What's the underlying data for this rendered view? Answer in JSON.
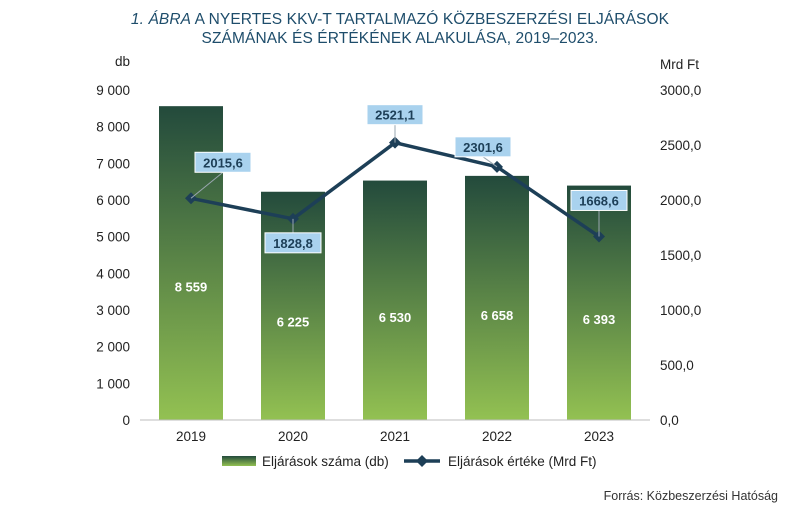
{
  "title": {
    "figure_label": "1. ÁBRA",
    "line1": " A NYERTES KKV-T TARTALMAZÓ KÖZBESZERZÉSI ELJÁRÁSOK",
    "line2": "SZÁMÁNAK ÉS ÉRTÉKÉNEK ALAKULÁSA, 2019–2023."
  },
  "source": "Forrás: Közbeszerzési Hatóság",
  "colors": {
    "bar_top": "#234a3c",
    "bar_bottom": "#93c152",
    "line": "#1d3f57",
    "label_bg": "#a9d2ee",
    "label_text": "#1d3f57",
    "title": "#1e4d6b"
  },
  "chart_data": {
    "type": "bar+line",
    "categories": [
      "2019",
      "2020",
      "2021",
      "2022",
      "2023"
    ],
    "series": [
      {
        "name": "Eljárások száma (db)",
        "type": "bar",
        "axis": "left",
        "values": [
          8559,
          6225,
          6530,
          6658,
          6393
        ],
        "labels": [
          "8 559",
          "6 225",
          "6 530",
          "6 658",
          "6 393"
        ]
      },
      {
        "name": "Eljárások értéke (Mrd Ft)",
        "type": "line",
        "axis": "right",
        "values": [
          2015.6,
          1828.8,
          2521.1,
          2301.6,
          1668.6
        ],
        "labels": [
          "2015,6",
          "1828,8",
          "2521,1",
          "2301,6",
          "1668,6"
        ]
      }
    ],
    "left_axis": {
      "unit": "db",
      "ylim": [
        0,
        9000
      ],
      "ticks": [
        0,
        1000,
        2000,
        3000,
        4000,
        5000,
        6000,
        7000,
        8000,
        9000
      ],
      "tick_labels": [
        "0",
        "1 000",
        "2 000",
        "3 000",
        "4 000",
        "5 000",
        "6 000",
        "7 000",
        "8 000",
        "9 000"
      ]
    },
    "right_axis": {
      "unit": "Mrd Ft",
      "ylim": [
        0,
        3000
      ],
      "ticks": [
        0,
        500,
        1000,
        1500,
        2000,
        2500,
        3000
      ],
      "tick_labels": [
        "0,0",
        "500,0",
        "1000,0",
        "1500,0",
        "2000,0",
        "2500,0",
        "3000,0"
      ]
    },
    "grid": false,
    "legend_position": "bottom"
  }
}
